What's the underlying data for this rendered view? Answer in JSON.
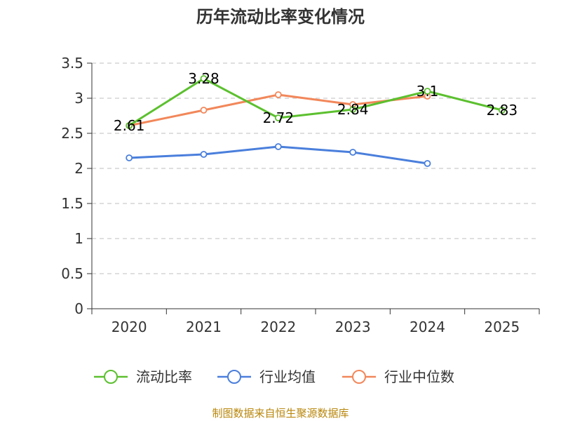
{
  "chart_data": {
    "type": "line",
    "title": "历年流动比率变化情况",
    "categories": [
      "2020",
      "2021",
      "2022",
      "2023",
      "2024",
      "2025"
    ],
    "ylim": [
      0,
      3.5
    ],
    "yticks": [
      "0",
      "0.5",
      "1",
      "1.5",
      "2",
      "2.5",
      "3",
      "3.5"
    ],
    "grid": true,
    "legend_position": "bottom",
    "series": [
      {
        "name": "流动比率",
        "color": "#5cc02f",
        "values": [
          2.61,
          3.28,
          2.72,
          2.84,
          3.1,
          2.83
        ],
        "labels": [
          "2.61",
          "3.28",
          "2.72",
          "2.84",
          "3.1",
          "2.83"
        ]
      },
      {
        "name": "行业均值",
        "color": "#4a7fdc",
        "values": [
          2.15,
          2.2,
          2.31,
          2.23,
          2.07,
          null
        ]
      },
      {
        "name": "行业中位数",
        "color": "#f2875a",
        "values": [
          2.61,
          2.83,
          3.05,
          2.91,
          3.03,
          null
        ]
      }
    ],
    "source": "制图数据来自恒生聚源数据库"
  }
}
